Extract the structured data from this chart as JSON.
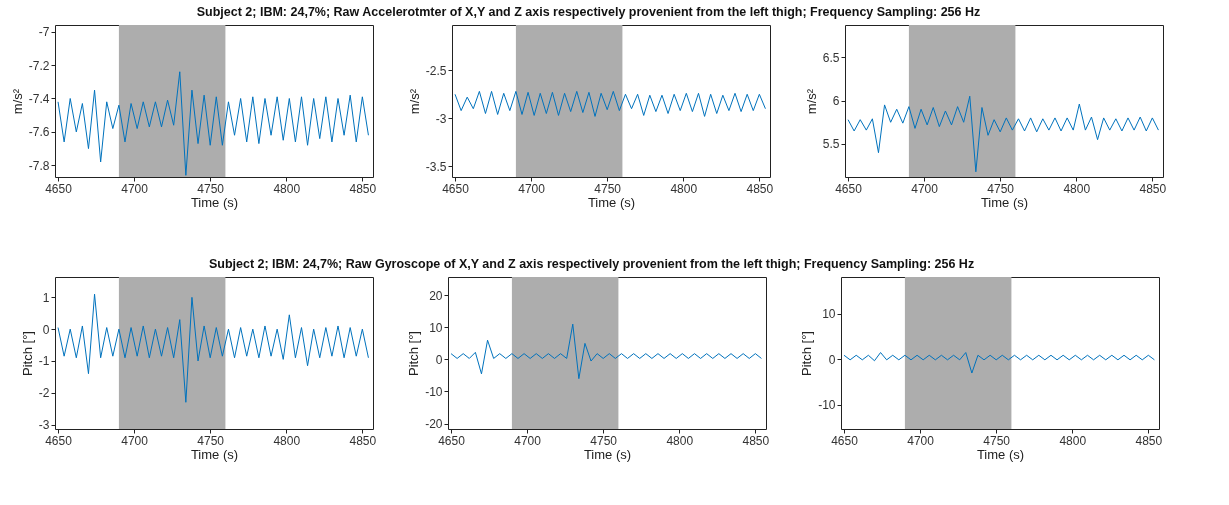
{
  "chart_data": [
    {
      "type": "line",
      "title": "Subject 2; IBM: 24,7%; Raw Accelerotmter of X,Y and Z axis respectively provenient from the left thigh; Frequency Sampling: 256 Hz",
      "xlabel": "Time (s)",
      "ylabel": "m/s²",
      "color": "#0072bd",
      "x": [
        4650,
        4654,
        4658,
        4662,
        4666,
        4670,
        4674,
        4678,
        4682,
        4686,
        4690,
        4694,
        4698,
        4702,
        4706,
        4710,
        4714,
        4718,
        4722,
        4726,
        4730,
        4734,
        4738,
        4742,
        4746,
        4750,
        4754,
        4758,
        4762,
        4766,
        4770,
        4774,
        4778,
        4782,
        4786,
        4790,
        4794,
        4798,
        4802,
        4806,
        4810,
        4814,
        4818,
        4822,
        4826,
        4830,
        4834,
        4838,
        4842,
        4846,
        4850,
        4854
      ],
      "values": [
        -7.42,
        -7.66,
        -7.4,
        -7.6,
        -7.43,
        -7.7,
        -7.35,
        -7.78,
        -7.42,
        -7.58,
        -7.44,
        -7.66,
        -7.43,
        -7.58,
        -7.42,
        -7.57,
        -7.42,
        -7.57,
        -7.41,
        -7.56,
        -7.24,
        -7.86,
        -7.35,
        -7.67,
        -7.38,
        -7.68,
        -7.39,
        -7.68,
        -7.42,
        -7.62,
        -7.4,
        -7.66,
        -7.39,
        -7.67,
        -7.4,
        -7.62,
        -7.39,
        -7.65,
        -7.4,
        -7.66,
        -7.39,
        -7.68,
        -7.4,
        -7.64,
        -7.39,
        -7.66,
        -7.4,
        -7.62,
        -7.38,
        -7.66,
        -7.39,
        -7.62
      ],
      "xlim": [
        4648,
        4857
      ],
      "xticks": [
        4650,
        4700,
        4750,
        4800,
        4850
      ],
      "ylim": [
        -7.87,
        -6.96
      ],
      "yticks": [
        -7.8,
        -7.6,
        -7.4,
        -7.2,
        -7
      ],
      "bands": [
        {
          "axis": "x",
          "from": 4690,
          "to": 4760,
          "color": "#adadad"
        }
      ],
      "grid": false
    },
    {
      "type": "line",
      "xlabel": "Time (s)",
      "ylabel": "m/s²",
      "color": "#0072bd",
      "x": [
        4650,
        4654,
        4658,
        4662,
        4666,
        4670,
        4674,
        4678,
        4682,
        4686,
        4690,
        4694,
        4698,
        4702,
        4706,
        4710,
        4714,
        4718,
        4722,
        4726,
        4730,
        4734,
        4738,
        4742,
        4746,
        4750,
        4754,
        4758,
        4762,
        4766,
        4770,
        4774,
        4778,
        4782,
        4786,
        4790,
        4794,
        4798,
        4802,
        4806,
        4810,
        4814,
        4818,
        4822,
        4826,
        4830,
        4834,
        4838,
        4842,
        4846,
        4850,
        4854
      ],
      "values": [
        -2.75,
        -2.92,
        -2.78,
        -2.9,
        -2.72,
        -2.95,
        -2.72,
        -2.96,
        -2.74,
        -2.92,
        -2.72,
        -2.96,
        -2.73,
        -2.97,
        -2.74,
        -2.95,
        -2.73,
        -2.97,
        -2.74,
        -2.93,
        -2.72,
        -2.94,
        -2.73,
        -2.98,
        -2.74,
        -2.91,
        -2.72,
        -2.92,
        -2.75,
        -2.9,
        -2.75,
        -2.97,
        -2.76,
        -2.93,
        -2.76,
        -2.95,
        -2.75,
        -2.92,
        -2.74,
        -2.93,
        -2.74,
        -2.98,
        -2.75,
        -2.95,
        -2.76,
        -2.92,
        -2.74,
        -2.93,
        -2.75,
        -2.92,
        -2.75,
        -2.9
      ],
      "xlim": [
        4648,
        4857
      ],
      "xticks": [
        4650,
        4700,
        4750,
        4800,
        4850
      ],
      "ylim": [
        -3.61,
        -2.03
      ],
      "yticks": [
        -3.5,
        -3,
        -2.5
      ],
      "bands": [
        {
          "axis": "x",
          "from": 4690,
          "to": 4760,
          "color": "#adadad"
        }
      ],
      "grid": false
    },
    {
      "type": "line",
      "xlabel": "Time (s)",
      "ylabel": "m/s²",
      "color": "#0072bd",
      "x": [
        4650,
        4654,
        4658,
        4662,
        4666,
        4670,
        4674,
        4678,
        4682,
        4686,
        4690,
        4694,
        4698,
        4702,
        4706,
        4710,
        4714,
        4718,
        4722,
        4726,
        4730,
        4734,
        4738,
        4742,
        4746,
        4750,
        4754,
        4758,
        4762,
        4766,
        4770,
        4774,
        4778,
        4782,
        4786,
        4790,
        4794,
        4798,
        4802,
        4806,
        4810,
        4814,
        4818,
        4822,
        4826,
        4830,
        4834,
        4838,
        4842,
        4846,
        4850,
        4854
      ],
      "values": [
        5.78,
        5.65,
        5.78,
        5.66,
        5.79,
        5.4,
        5.95,
        5.75,
        5.9,
        5.74,
        5.93,
        5.68,
        5.9,
        5.72,
        5.92,
        5.7,
        5.88,
        5.72,
        5.93,
        5.75,
        6.05,
        5.18,
        5.92,
        5.6,
        5.78,
        5.64,
        5.8,
        5.66,
        5.79,
        5.65,
        5.8,
        5.64,
        5.79,
        5.66,
        5.8,
        5.65,
        5.8,
        5.66,
        5.96,
        5.66,
        5.81,
        5.55,
        5.8,
        5.66,
        5.79,
        5.65,
        5.8,
        5.66,
        5.81,
        5.65,
        5.8,
        5.66
      ],
      "xlim": [
        4648,
        4857
      ],
      "xticks": [
        4650,
        4700,
        4750,
        4800,
        4850
      ],
      "ylim": [
        5.12,
        6.87
      ],
      "yticks": [
        5.5,
        6,
        6.5
      ],
      "bands": [
        {
          "axis": "x",
          "from": 4690,
          "to": 4760,
          "color": "#adadad"
        }
      ],
      "grid": false
    },
    {
      "type": "line",
      "title": "Subject 2;  IBM: 24,7%; Raw Gyroscope of X,Y and Z axis respectively provenient from the left thigh; Frequency Sampling: 256 Hz",
      "xlabel": "Time (s)",
      "ylabel": "Pitch [°]",
      "color": "#0072bd",
      "x": [
        4650,
        4654,
        4658,
        4662,
        4666,
        4670,
        4674,
        4678,
        4682,
        4686,
        4690,
        4694,
        4698,
        4702,
        4706,
        4710,
        4714,
        4718,
        4722,
        4726,
        4730,
        4734,
        4738,
        4742,
        4746,
        4750,
        4754,
        4758,
        4762,
        4766,
        4770,
        4774,
        4778,
        4782,
        4786,
        4790,
        4794,
        4798,
        4802,
        4806,
        4810,
        4814,
        4818,
        4822,
        4826,
        4830,
        4834,
        4838,
        4842,
        4846,
        4850,
        4854
      ],
      "values": [
        0.05,
        -0.85,
        0.0,
        -0.9,
        0.1,
        -1.4,
        1.1,
        -0.9,
        0.05,
        -0.85,
        0.0,
        -0.9,
        0.05,
        -0.85,
        0.1,
        -0.9,
        0.0,
        -0.85,
        0.05,
        -0.9,
        0.3,
        -2.3,
        1.0,
        -1.0,
        0.1,
        -0.9,
        0.05,
        -0.85,
        0.0,
        -0.9,
        0.05,
        -0.85,
        0.0,
        -0.9,
        0.1,
        -0.85,
        0.0,
        -0.95,
        0.45,
        -0.9,
        0.05,
        -1.15,
        0.0,
        -0.9,
        0.05,
        -0.85,
        0.1,
        -0.9,
        0.05,
        -0.85,
        0.0,
        -0.9
      ],
      "xlim": [
        4648,
        4857
      ],
      "xticks": [
        4650,
        4700,
        4750,
        4800,
        4850
      ],
      "ylim": [
        -3.14,
        1.64
      ],
      "yticks": [
        -3,
        -2,
        -1,
        0,
        1
      ],
      "bands": [
        {
          "axis": "x",
          "from": 4690,
          "to": 4760,
          "color": "#adadad"
        }
      ],
      "grid": false
    },
    {
      "type": "line",
      "xlabel": "Time (s)",
      "ylabel": "Pitch [°]",
      "color": "#0072bd",
      "x": [
        4650,
        4654,
        4658,
        4662,
        4666,
        4670,
        4674,
        4678,
        4682,
        4686,
        4690,
        4694,
        4698,
        4702,
        4706,
        4710,
        4714,
        4718,
        4722,
        4726,
        4730,
        4734,
        4738,
        4742,
        4746,
        4750,
        4754,
        4758,
        4762,
        4766,
        4770,
        4774,
        4778,
        4782,
        4786,
        4790,
        4794,
        4798,
        4802,
        4806,
        4810,
        4814,
        4818,
        4822,
        4826,
        4830,
        4834,
        4838,
        4842,
        4846,
        4850,
        4854
      ],
      "values": [
        1.8,
        0.3,
        1.8,
        0.3,
        2.2,
        -4.5,
        6,
        0.3,
        1.8,
        0.3,
        1.8,
        0.3,
        1.8,
        0.3,
        1.8,
        0.3,
        1.8,
        0.3,
        1.8,
        0.3,
        11,
        -6,
        5,
        -0.5,
        1.8,
        0.3,
        1.8,
        0.3,
        1.8,
        0.3,
        1.8,
        0.3,
        1.8,
        0.3,
        1.8,
        0.3,
        1.8,
        0.3,
        1.8,
        0.3,
        1.8,
        0.3,
        1.8,
        0.3,
        1.8,
        0.3,
        1.8,
        0.3,
        1.8,
        0.3,
        1.8,
        0.3
      ],
      "xlim": [
        4648,
        4857
      ],
      "xticks": [
        4650,
        4700,
        4750,
        4800,
        4850
      ],
      "ylim": [
        -21.7,
        25.7
      ],
      "yticks": [
        -20,
        -10,
        0,
        10,
        20
      ],
      "bands": [
        {
          "axis": "x",
          "from": 4690,
          "to": 4760,
          "color": "#adadad"
        }
      ],
      "grid": false
    },
    {
      "type": "line",
      "xlabel": "Time (s)",
      "ylabel": "Pitch [°]",
      "color": "#0072bd",
      "x": [
        4650,
        4654,
        4658,
        4662,
        4666,
        4670,
        4674,
        4678,
        4682,
        4686,
        4690,
        4694,
        4698,
        4702,
        4706,
        4710,
        4714,
        4718,
        4722,
        4726,
        4730,
        4734,
        4738,
        4742,
        4746,
        4750,
        4754,
        4758,
        4762,
        4766,
        4770,
        4774,
        4778,
        4782,
        4786,
        4790,
        4794,
        4798,
        4802,
        4806,
        4810,
        4814,
        4818,
        4822,
        4826,
        4830,
        4834,
        4838,
        4842,
        4846,
        4850,
        4854
      ],
      "values": [
        0.9,
        -0.1,
        0.9,
        -0.1,
        0.9,
        -0.3,
        1.5,
        -0.1,
        0.9,
        -0.1,
        0.9,
        -0.1,
        0.9,
        -0.1,
        0.9,
        -0.1,
        0.9,
        -0.1,
        0.9,
        -0.1,
        1.5,
        -3,
        0.9,
        -0.1,
        0.9,
        -0.1,
        0.9,
        -0.1,
        0.9,
        -0.1,
        0.9,
        -0.1,
        0.9,
        -0.1,
        0.9,
        -0.1,
        0.9,
        -0.1,
        0.9,
        -0.1,
        0.9,
        -0.1,
        0.9,
        -0.1,
        0.9,
        -0.1,
        0.9,
        -0.1,
        0.9,
        -0.1,
        0.9,
        -0.1
      ],
      "xlim": [
        4648,
        4857
      ],
      "xticks": [
        4650,
        4700,
        4750,
        4800,
        4850
      ],
      "ylim": [
        -15.3,
        18.1
      ],
      "yticks": [
        -10,
        0,
        10
      ],
      "bands": [
        {
          "axis": "x",
          "from": 4690,
          "to": 4760,
          "color": "#adadad"
        }
      ],
      "grid": false
    }
  ]
}
